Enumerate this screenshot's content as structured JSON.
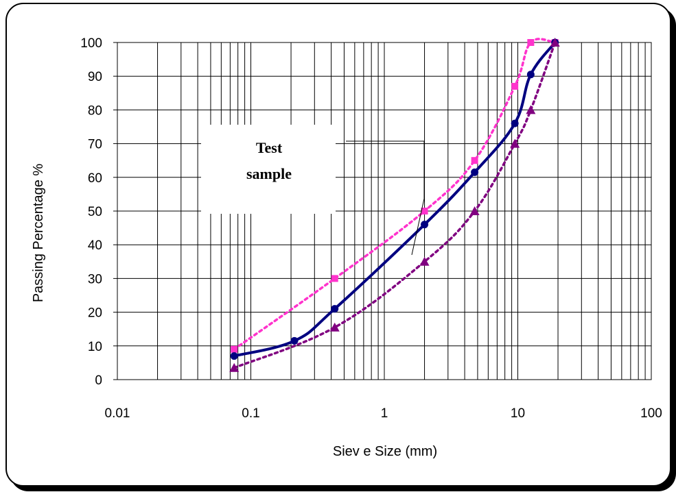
{
  "chart_data": {
    "type": "line",
    "xscale": "log",
    "xlim": [
      0.01,
      100
    ],
    "ylim": [
      0,
      100
    ],
    "xlabel": "Siev e Size (mm)",
    "ylabel": "Passing Percentage %",
    "x_tick_labels": [
      "0.01",
      "0.1",
      "1",
      "10",
      "100"
    ],
    "y_tick_labels": [
      "0",
      "10",
      "20",
      "30",
      "40",
      "50",
      "60",
      "70",
      "80",
      "90",
      "100"
    ],
    "grid": true,
    "legend": "none",
    "annotation": "Test sample",
    "series": [
      {
        "color": "#FF33CC",
        "style": "dotted",
        "marker": "square",
        "points": [
          [
            0.075,
            9
          ],
          [
            0.425,
            30
          ],
          [
            2,
            50
          ],
          [
            4.75,
            65
          ],
          [
            9.5,
            87
          ],
          [
            12.5,
            100
          ],
          [
            19,
            100
          ]
        ]
      },
      {
        "color": "#000080",
        "style": "solid",
        "marker": "circle",
        "points": [
          [
            0.075,
            7
          ],
          [
            0.212,
            11.5
          ],
          [
            0.425,
            21
          ],
          [
            2,
            46
          ],
          [
            4.75,
            61.5
          ],
          [
            9.5,
            76
          ],
          [
            12.5,
            90.5
          ],
          [
            19,
            100
          ]
        ]
      },
      {
        "color": "#800080",
        "style": "dotted",
        "marker": "triangle",
        "points": [
          [
            0.075,
            3.5
          ],
          [
            0.425,
            15.5
          ],
          [
            2,
            35
          ],
          [
            4.75,
            50
          ],
          [
            9.5,
            70
          ],
          [
            12.5,
            80
          ],
          [
            19,
            100
          ]
        ]
      }
    ]
  }
}
